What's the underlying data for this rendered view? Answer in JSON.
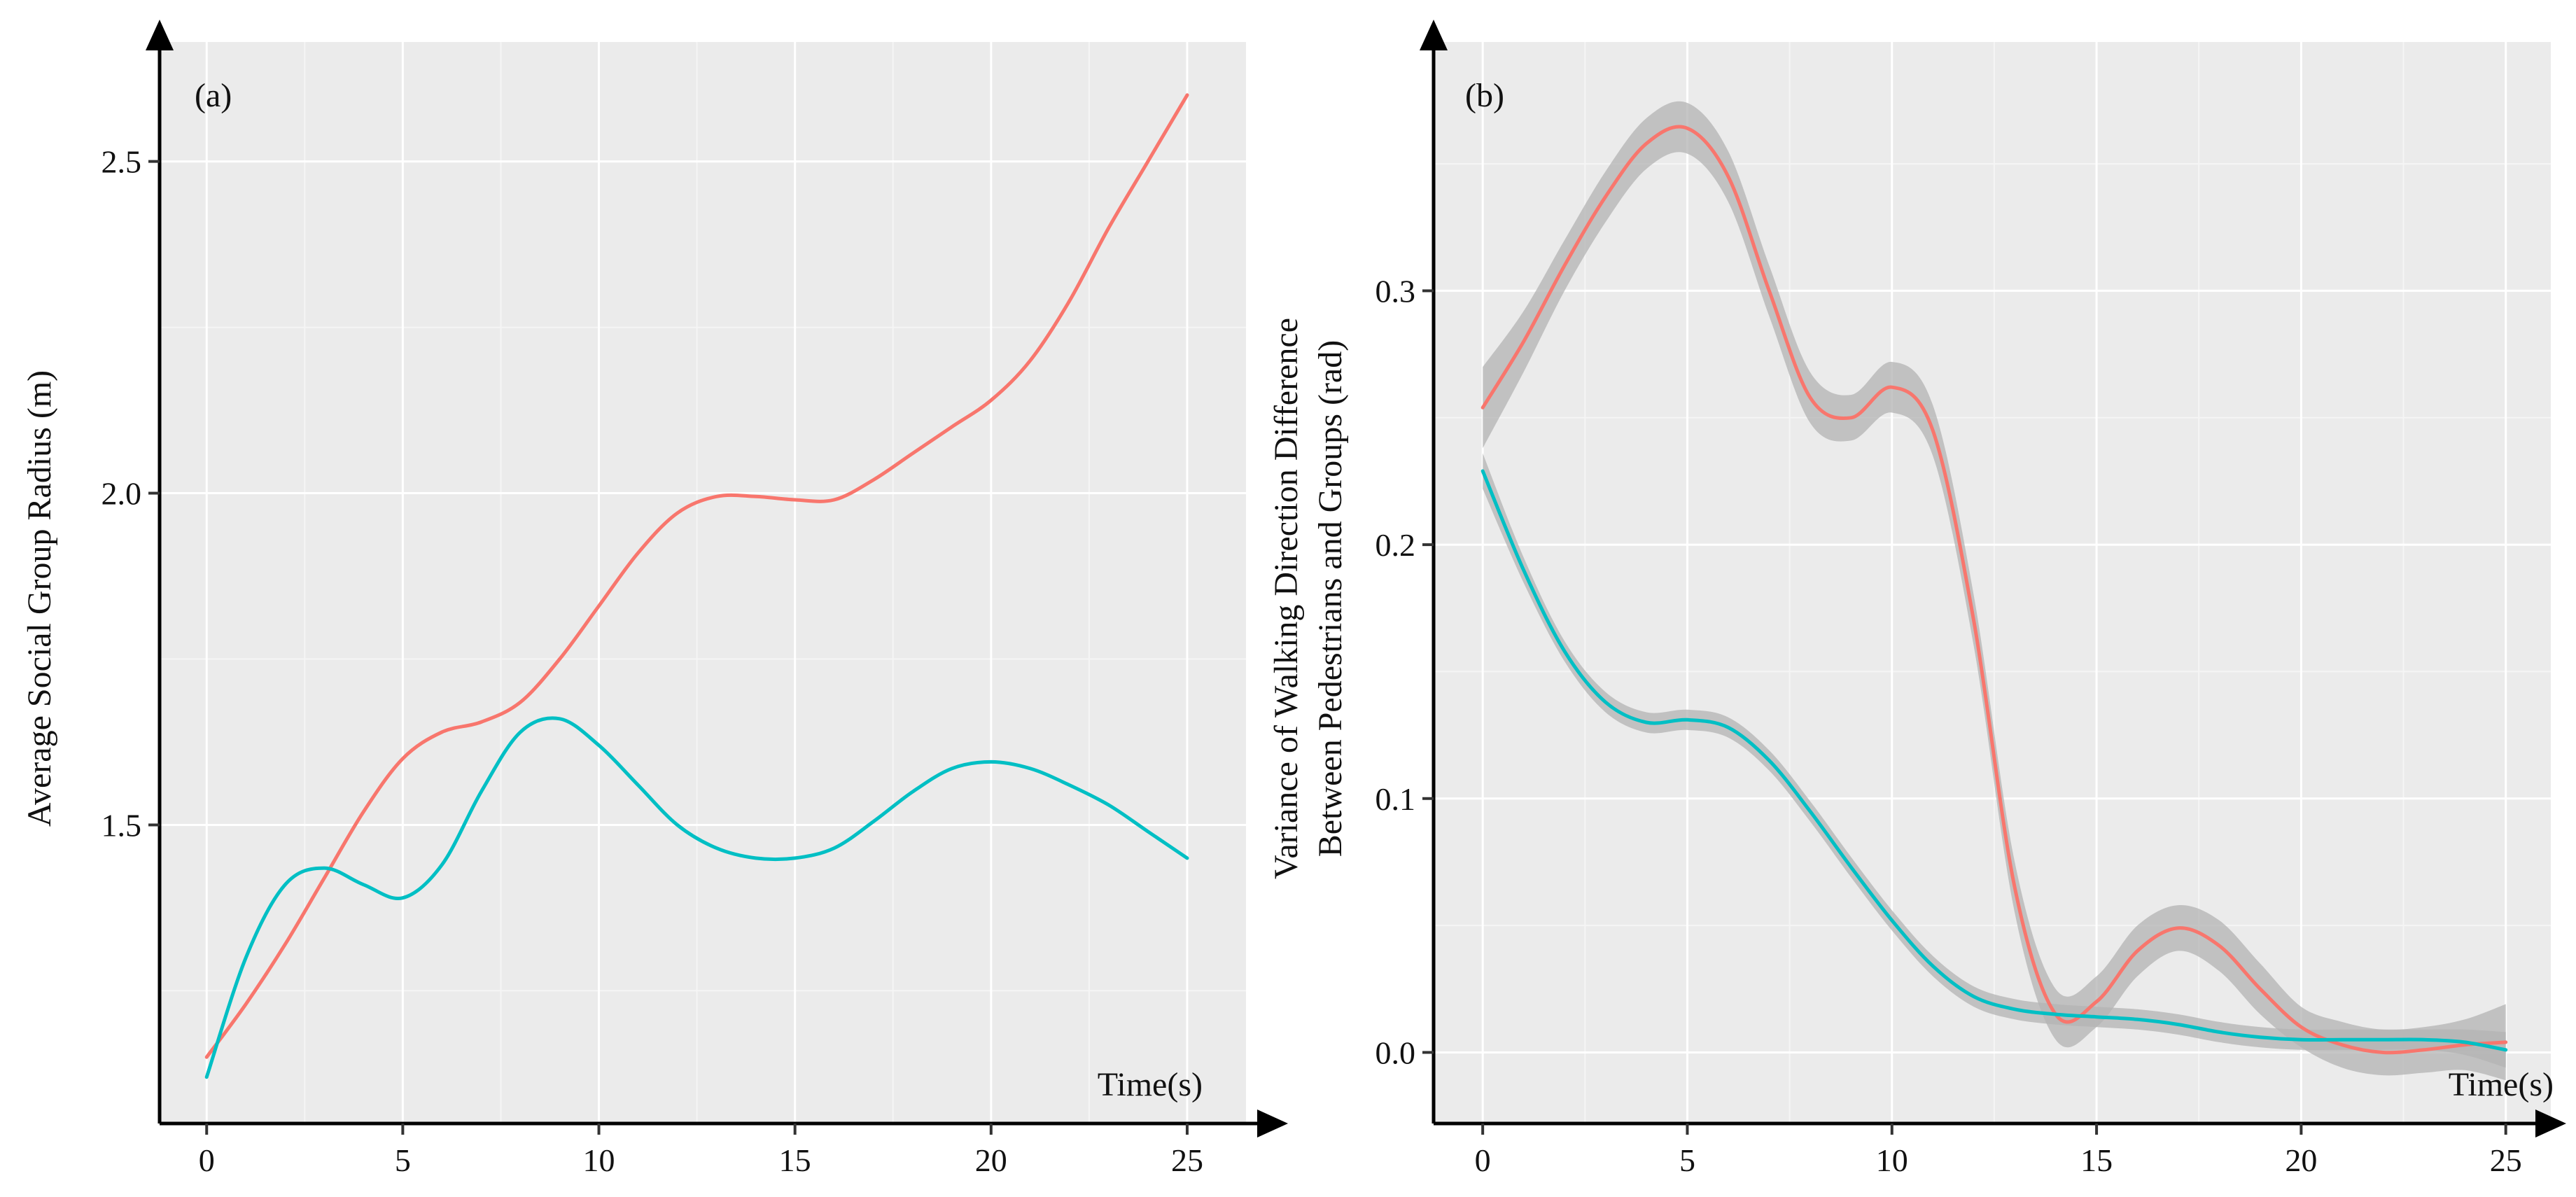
{
  "chart_data": [
    {
      "type": "line",
      "panel_label": "(a)",
      "title": "",
      "xlabel": "Time(s)",
      "ylabel": "Average Social Group Radius (m)",
      "xlim": [
        -1.2,
        26.5
      ],
      "ylim": [
        1.05,
        2.68
      ],
      "x_ticks": [
        0,
        5,
        10,
        15,
        20,
        25
      ],
      "x_tick_labels": [
        "0",
        "5",
        "10",
        "15",
        "20",
        "25"
      ],
      "y_ticks": [
        1.5,
        2.0,
        2.5
      ],
      "y_tick_labels": [
        "1.5",
        "2.0",
        "2.5"
      ],
      "grid": true,
      "series": [
        {
          "name": "series-1",
          "color": "#f8766d",
          "x": [
            0,
            1,
            2,
            3,
            4,
            5,
            6,
            7,
            8,
            9,
            10,
            11,
            12,
            13,
            14,
            15,
            16,
            17,
            18,
            19,
            20,
            21,
            22,
            23,
            24,
            25
          ],
          "y": [
            1.15,
            1.23,
            1.32,
            1.42,
            1.52,
            1.6,
            1.64,
            1.655,
            1.685,
            1.75,
            1.83,
            1.91,
            1.97,
            1.995,
            1.995,
            1.99,
            1.99,
            2.02,
            2.06,
            2.1,
            2.14,
            2.2,
            2.29,
            2.4,
            2.5,
            2.6
          ]
        },
        {
          "name": "series-2",
          "color": "#00bfc4",
          "x": [
            0,
            1,
            2,
            3,
            4,
            5,
            6,
            7,
            8,
            9,
            10,
            11,
            12,
            13,
            14,
            15,
            16,
            17,
            18,
            19,
            20,
            21,
            22,
            23,
            24,
            25
          ],
          "y": [
            1.12,
            1.3,
            1.41,
            1.435,
            1.41,
            1.39,
            1.44,
            1.55,
            1.64,
            1.66,
            1.62,
            1.56,
            1.5,
            1.465,
            1.45,
            1.45,
            1.465,
            1.505,
            1.55,
            1.585,
            1.595,
            1.585,
            1.56,
            1.53,
            1.49,
            1.45
          ]
        }
      ]
    },
    {
      "type": "line",
      "panel_label": "(b)",
      "title": "",
      "xlabel": "Time(s)",
      "ylabel": "Variance of Walking Direction Difference",
      "ylabel_line2": "Between Pedestrians and Groups  (rad)",
      "xlim": [
        -1.2,
        26.1
      ],
      "ylim": [
        -0.028,
        0.398
      ],
      "x_ticks": [
        0,
        5,
        10,
        15,
        20,
        25
      ],
      "x_tick_labels": [
        "0",
        "5",
        "10",
        "15",
        "20",
        "25"
      ],
      "y_ticks": [
        0.0,
        0.1,
        0.2,
        0.3
      ],
      "y_tick_labels": [
        "0.0",
        "0.1",
        "0.2",
        "0.3"
      ],
      "grid": true,
      "confidence_band": true,
      "series": [
        {
          "name": "series-1",
          "color": "#f8766d",
          "x": [
            0,
            1,
            2,
            3,
            4,
            5,
            6,
            7,
            8,
            9,
            10,
            11,
            12,
            13,
            14,
            15,
            16,
            17,
            18,
            19,
            20,
            21,
            22,
            23,
            24,
            25
          ],
          "y": [
            0.254,
            0.28,
            0.31,
            0.337,
            0.358,
            0.364,
            0.345,
            0.3,
            0.258,
            0.25,
            0.262,
            0.245,
            0.17,
            0.065,
            0.015,
            0.02,
            0.04,
            0.049,
            0.042,
            0.025,
            0.01,
            0.003,
            0.0,
            0.001,
            0.003,
            0.004
          ],
          "band": [
            0.016,
            0.012,
            0.01,
            0.01,
            0.01,
            0.01,
            0.01,
            0.01,
            0.01,
            0.009,
            0.01,
            0.01,
            0.01,
            0.01,
            0.01,
            0.01,
            0.01,
            0.009,
            0.01,
            0.01,
            0.008,
            0.009,
            0.009,
            0.009,
            0.01,
            0.015
          ]
        },
        {
          "name": "series-2",
          "color": "#00bfc4",
          "x": [
            0,
            1,
            2,
            3,
            4,
            5,
            6,
            7,
            8,
            9,
            10,
            11,
            12,
            13,
            14,
            15,
            16,
            17,
            18,
            19,
            20,
            21,
            22,
            23,
            24,
            25
          ],
          "y": [
            0.229,
            0.19,
            0.158,
            0.138,
            0.13,
            0.131,
            0.128,
            0.115,
            0.095,
            0.073,
            0.052,
            0.034,
            0.022,
            0.017,
            0.015,
            0.014,
            0.013,
            0.011,
            0.008,
            0.006,
            0.005,
            0.005,
            0.005,
            0.005,
            0.004,
            0.001
          ],
          "band": [
            0.007,
            0.005,
            0.004,
            0.004,
            0.004,
            0.004,
            0.004,
            0.004,
            0.004,
            0.004,
            0.004,
            0.004,
            0.004,
            0.004,
            0.004,
            0.004,
            0.004,
            0.004,
            0.004,
            0.004,
            0.004,
            0.004,
            0.004,
            0.004,
            0.005,
            0.007
          ]
        }
      ]
    }
  ]
}
